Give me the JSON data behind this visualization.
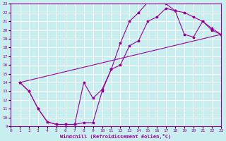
{
  "xlabel": "Windchill (Refroidissement éolien,°C)",
  "xlim": [
    0,
    23
  ],
  "ylim": [
    9,
    23
  ],
  "xticks": [
    0,
    1,
    2,
    3,
    4,
    5,
    6,
    7,
    8,
    9,
    10,
    11,
    12,
    13,
    14,
    15,
    16,
    17,
    18,
    19,
    20,
    21,
    22,
    23
  ],
  "yticks": [
    9,
    10,
    11,
    12,
    13,
    14,
    15,
    16,
    17,
    18,
    19,
    20,
    21,
    22,
    23
  ],
  "bg_color": "#c8eef0",
  "line_color": "#990099",
  "grid_color": "#ffffff",
  "line1_x": [
    1,
    2,
    3,
    4,
    5,
    6,
    7,
    8,
    9,
    10,
    11,
    12,
    13,
    14,
    15,
    16,
    17,
    18,
    19,
    20,
    21,
    22,
    23
  ],
  "line1_y": [
    14,
    13,
    11,
    9.5,
    9.2,
    9.2,
    9.2,
    9.4,
    9.4,
    13.0,
    15.5,
    18.5,
    21.0,
    22.0,
    23.2,
    23.3,
    23.0,
    22.2,
    22.0,
    21.5,
    21.0,
    20.0,
    19.5
  ],
  "line2_x": [
    1,
    2,
    3,
    4,
    5,
    6,
    7,
    8,
    9,
    10,
    11,
    12,
    13,
    14,
    15,
    16,
    17,
    18,
    19,
    20,
    21,
    22,
    23
  ],
  "line2_y": [
    14,
    13,
    11,
    9.5,
    9.2,
    9.2,
    9.2,
    14.0,
    12.2,
    13.2,
    15.5,
    16.0,
    18.2,
    18.8,
    21.0,
    21.5,
    22.5,
    22.2,
    19.5,
    19.2,
    21.0,
    20.2,
    19.5
  ],
  "line3_x": [
    1,
    23
  ],
  "line3_y": [
    14,
    19.5
  ]
}
